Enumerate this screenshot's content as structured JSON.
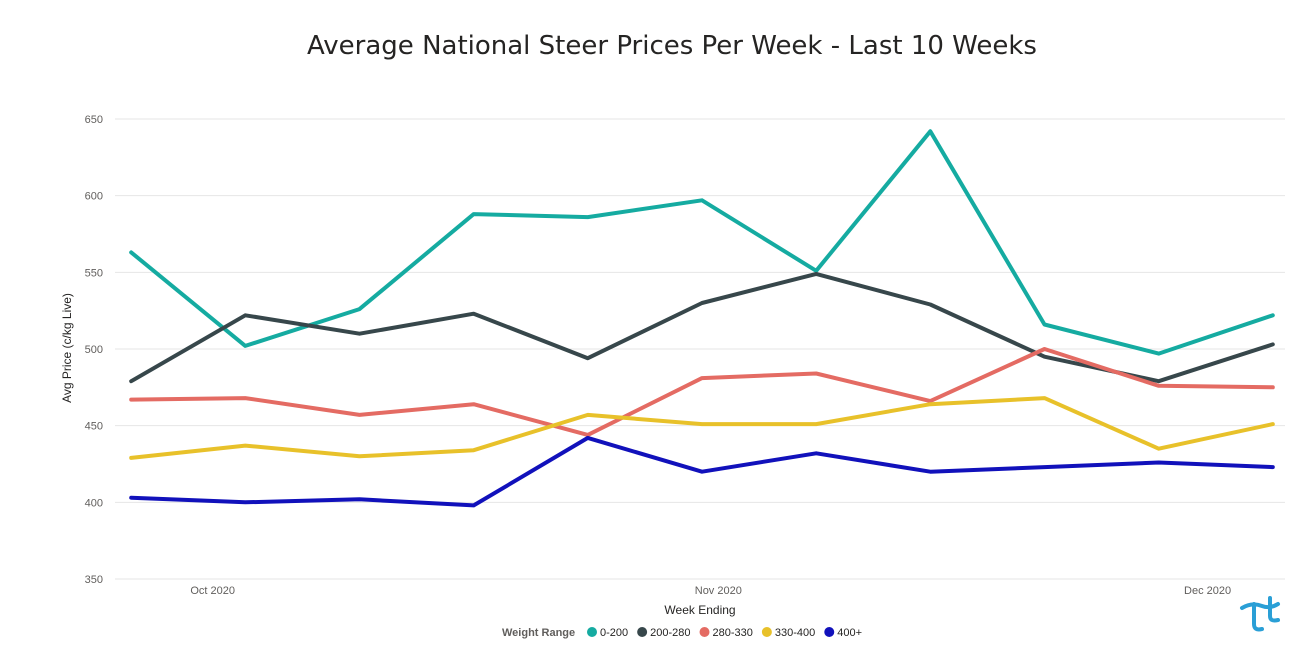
{
  "chart_data": {
    "type": "line",
    "title": "Average National Steer Prices Per Week - Last 10 Weeks",
    "xlabel": "Week Ending",
    "ylabel": "Avg Price (c/kg Live)",
    "ylim": [
      350,
      650
    ],
    "yticks": [
      350,
      400,
      450,
      500,
      550,
      600,
      650
    ],
    "grid": true,
    "x": [
      "2020-09-26",
      "2020-10-03",
      "2020-10-10",
      "2020-10-17",
      "2020-10-24",
      "2020-10-31",
      "2020-11-07",
      "2020-11-14",
      "2020-11-21",
      "2020-11-28",
      "2020-12-05"
    ],
    "xticks": [
      {
        "label": "Oct 2020",
        "date": "2020-10-01"
      },
      {
        "label": "Nov 2020",
        "date": "2020-11-01"
      },
      {
        "label": "Dec 2020",
        "date": "2020-12-01"
      }
    ],
    "legend": {
      "title": "Weight Range",
      "position": "bottom"
    },
    "series": [
      {
        "name": "0-200",
        "color": "#15aba1",
        "values": [
          563,
          502,
          526,
          588,
          586,
          597,
          551,
          642,
          516,
          497,
          522
        ]
      },
      {
        "name": "200-280",
        "color": "#37474b",
        "values": [
          479,
          522,
          510,
          523,
          494,
          530,
          549,
          529,
          495,
          479,
          503
        ]
      },
      {
        "name": "280-330",
        "color": "#e46b63",
        "values": [
          467,
          468,
          457,
          464,
          444,
          481,
          484,
          466,
          500,
          476,
          475
        ]
      },
      {
        "name": "330-400",
        "color": "#e8c12a",
        "values": [
          429,
          437,
          430,
          434,
          457,
          451,
          451,
          464,
          468,
          435,
          451
        ]
      },
      {
        "name": "400+",
        "color": "#1111bb",
        "values": [
          403,
          400,
          402,
          398,
          442,
          420,
          432,
          420,
          423,
          426,
          423
        ]
      }
    ]
  },
  "logo": {
    "icon": "brand-logo-icon",
    "color": "#2a9fd6"
  }
}
